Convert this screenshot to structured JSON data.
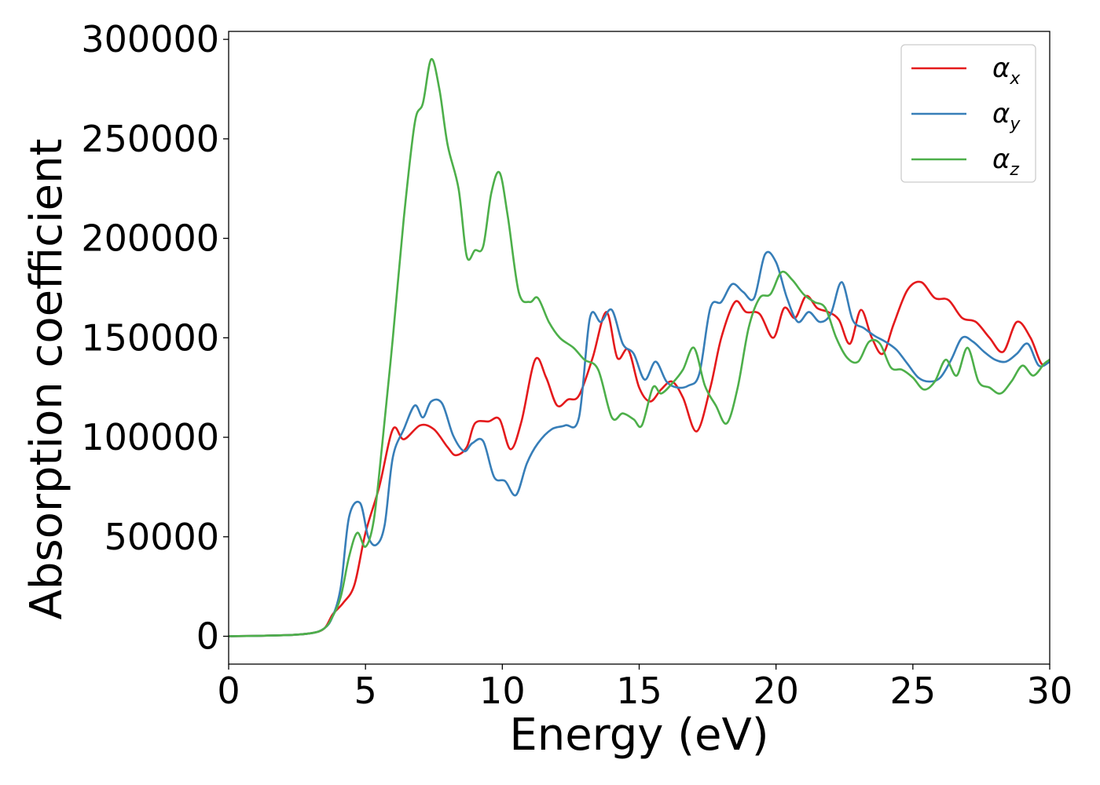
{
  "chart_data": {
    "type": "line",
    "title": "",
    "xlabel": "Energy (eV)",
    "ylabel": "Absorption coefficient",
    "xlim": [
      0,
      30
    ],
    "ylim": [
      -14000,
      304000
    ],
    "xticks": [
      0,
      5,
      10,
      15,
      20,
      25,
      30
    ],
    "xtick_labels": [
      "0",
      "5",
      "10",
      "15",
      "20",
      "25",
      "30"
    ],
    "yticks": [
      0,
      50000,
      100000,
      150000,
      200000,
      250000,
      300000
    ],
    "ytick_labels": [
      "0",
      "50000",
      "100000",
      "150000",
      "200000",
      "250000",
      "300000"
    ],
    "grid": false,
    "legend_position": "top-right",
    "series": [
      {
        "name": "α_x",
        "legend_symbol": "α",
        "legend_subscript": "x",
        "color": "#e41a1c",
        "x": [
          0,
          2,
          3,
          3.5,
          3.8,
          4.2,
          4.6,
          5.0,
          5.5,
          6.0,
          6.4,
          7.0,
          7.5,
          8.0,
          8.3,
          8.7,
          9.0,
          9.5,
          9.9,
          10.3,
          10.7,
          11.2,
          11.6,
          12.0,
          12.4,
          12.8,
          13.3,
          13.8,
          14.2,
          14.6,
          15.0,
          15.4,
          15.8,
          16.2,
          16.6,
          17.1,
          17.6,
          18.0,
          18.5,
          18.9,
          19.4,
          19.9,
          20.3,
          20.7,
          21.1,
          21.5,
          21.9,
          22.3,
          22.7,
          23.1,
          23.5,
          23.9,
          24.3,
          24.8,
          25.3,
          25.8,
          26.3,
          26.8,
          27.3,
          27.8,
          28.3,
          28.8,
          29.3,
          29.7,
          30.0
        ],
        "y": [
          0,
          500,
          1500,
          4000,
          11000,
          17000,
          26000,
          52000,
          75000,
          104000,
          99000,
          106000,
          104000,
          95000,
          91000,
          95000,
          107000,
          108000,
          109000,
          94000,
          108000,
          139000,
          130000,
          116000,
          119000,
          121000,
          140000,
          163000,
          140000,
          144000,
          125000,
          118000,
          124000,
          128000,
          120000,
          103000,
          125000,
          150000,
          168000,
          163000,
          162000,
          150000,
          165000,
          160000,
          171000,
          165000,
          163000,
          159000,
          147000,
          164000,
          150000,
          142000,
          157000,
          174000,
          178000,
          170000,
          169000,
          160000,
          158000,
          150000,
          143000,
          158000,
          150000,
          137000,
          139000
        ]
      },
      {
        "name": "α_y",
        "legend_symbol": "α",
        "legend_subscript": "y",
        "color": "#377eb8",
        "x": [
          0,
          2,
          3,
          3.5,
          3.8,
          4.1,
          4.4,
          4.8,
          5.1,
          5.4,
          5.7,
          6.0,
          6.4,
          6.8,
          7.1,
          7.4,
          7.8,
          8.2,
          8.6,
          8.9,
          9.3,
          9.7,
          10.1,
          10.5,
          10.9,
          11.3,
          11.8,
          12.3,
          12.8,
          13.2,
          13.6,
          14.0,
          14.4,
          14.8,
          15.2,
          15.6,
          16.0,
          16.4,
          16.8,
          17.2,
          17.6,
          18.0,
          18.4,
          18.8,
          19.2,
          19.6,
          20.0,
          20.4,
          20.8,
          21.2,
          21.6,
          22.0,
          22.4,
          22.8,
          23.2,
          23.6,
          24.0,
          24.4,
          24.8,
          25.2,
          25.6,
          26.0,
          26.4,
          26.8,
          27.2,
          27.6,
          28.0,
          28.4,
          28.8,
          29.2,
          29.6,
          30.0
        ],
        "y": [
          0,
          500,
          1500,
          4000,
          10000,
          25000,
          60000,
          67000,
          50000,
          46000,
          56000,
          90000,
          104000,
          116000,
          110000,
          118000,
          117000,
          101000,
          93000,
          97000,
          98000,
          80000,
          78000,
          71000,
          87000,
          97000,
          104000,
          106000,
          110000,
          160000,
          158000,
          164000,
          147000,
          142000,
          129000,
          138000,
          128000,
          125000,
          126000,
          132000,
          165000,
          168000,
          177000,
          173000,
          170000,
          192000,
          188000,
          170000,
          158000,
          163000,
          158000,
          162000,
          178000,
          159000,
          155000,
          151000,
          148000,
          144000,
          137000,
          130000,
          128000,
          130000,
          139000,
          150000,
          148000,
          143000,
          139000,
          138000,
          142000,
          147000,
          136000,
          138000
        ]
      },
      {
        "name": "α_z",
        "legend_symbol": "α",
        "legend_subscript": "z",
        "color": "#4daf4a",
        "x": [
          0,
          2,
          3,
          3.5,
          3.8,
          4.1,
          4.4,
          4.7,
          5.0,
          5.3,
          5.6,
          6.0,
          6.4,
          6.8,
          7.1,
          7.4,
          7.7,
          8.0,
          8.4,
          8.7,
          9.0,
          9.3,
          9.6,
          9.9,
          10.2,
          10.6,
          11.0,
          11.3,
          11.7,
          12.1,
          12.6,
          13.0,
          13.5,
          14.0,
          14.4,
          14.8,
          15.1,
          15.5,
          15.8,
          16.2,
          16.6,
          17.0,
          17.4,
          17.8,
          18.2,
          18.6,
          19.0,
          19.4,
          19.8,
          20.2,
          20.6,
          21.0,
          21.4,
          21.8,
          22.2,
          22.6,
          23.0,
          23.4,
          23.8,
          24.2,
          24.6,
          25.0,
          25.4,
          25.8,
          26.2,
          26.6,
          27.0,
          27.4,
          27.8,
          28.2,
          28.6,
          29.0,
          29.4,
          29.8,
          30.0
        ],
        "y": [
          0,
          500,
          1500,
          4000,
          10000,
          20000,
          40000,
          52000,
          45000,
          58000,
          95000,
          150000,
          210000,
          258000,
          268000,
          290000,
          275000,
          247000,
          225000,
          191000,
          194000,
          196000,
          223000,
          233000,
          211000,
          173000,
          168000,
          170000,
          158000,
          150000,
          145000,
          139000,
          134000,
          110000,
          112000,
          109000,
          106000,
          125000,
          122000,
          127000,
          134000,
          145000,
          126000,
          116000,
          107000,
          125000,
          155000,
          170000,
          172000,
          183000,
          179000,
          172000,
          168000,
          165000,
          150000,
          140000,
          138000,
          148000,
          147000,
          135000,
          134000,
          130000,
          124000,
          128000,
          139000,
          131000,
          145000,
          128000,
          125000,
          122000,
          128000,
          136000,
          131000,
          137000,
          139000
        ]
      }
    ]
  }
}
